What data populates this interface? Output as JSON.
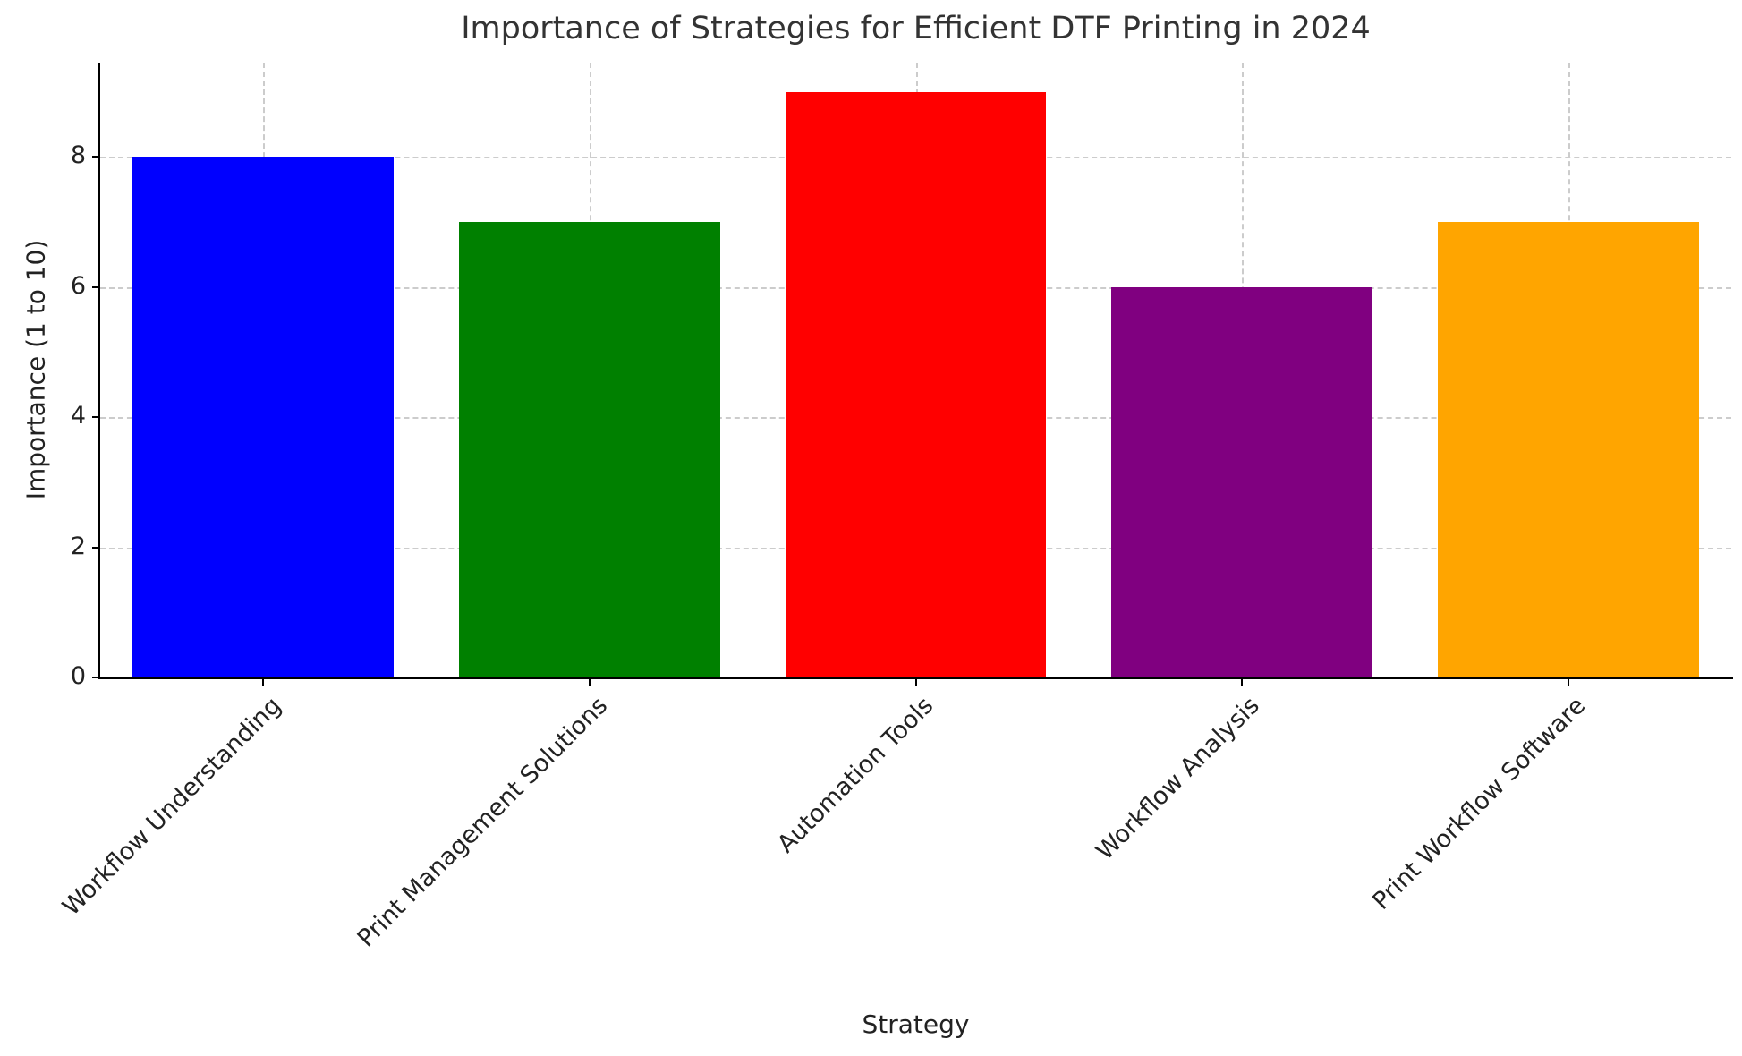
{
  "chart_data": {
    "type": "bar",
    "title": "Importance of Strategies for Efficient DTF Printing in 2024",
    "xlabel": "Strategy",
    "ylabel": "Importance (1 to 10)",
    "categories": [
      "Workflow Understanding",
      "Print Management Solutions",
      "Automation Tools",
      "Workflow Analysis",
      "Print Workflow Software"
    ],
    "values": [
      8,
      7,
      9,
      6,
      7
    ],
    "bar_colors": [
      "#0000ff",
      "#008000",
      "#ff0000",
      "#800080",
      "#ffa500"
    ],
    "yticks": [
      0,
      2,
      4,
      6,
      8
    ],
    "ylim": [
      0,
      9.45
    ],
    "bar_width_fraction": 0.8,
    "grid": true,
    "grid_color": "#cccccc",
    "axis_color": "#000000",
    "background": "#ffffff",
    "legend": "none"
  }
}
